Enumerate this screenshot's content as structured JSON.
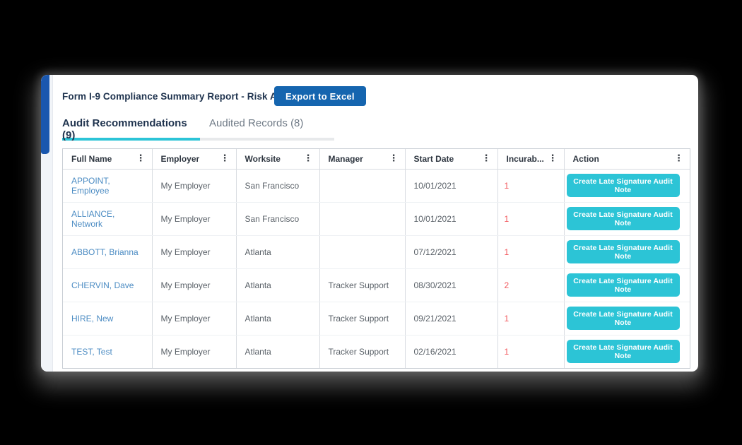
{
  "report": {
    "title": "Form I-9 Compliance Summary Report - Risk Alerts",
    "export_button_label": "Export to Excel"
  },
  "tabs": [
    {
      "label": "Audit Recommendations (9)",
      "active": true
    },
    {
      "label": "Audited Records (8)",
      "active": false
    }
  ],
  "icons": {
    "column_menu_glyph": "⋮"
  },
  "table": {
    "columns": [
      {
        "label": "Full Name"
      },
      {
        "label": "Employer"
      },
      {
        "label": "Worksite"
      },
      {
        "label": "Manager"
      },
      {
        "label": "Start Date"
      },
      {
        "label": "Incurab..."
      },
      {
        "label": "Action"
      }
    ],
    "rows": [
      {
        "full_name": "APPOINT, Employee",
        "employer": "My Employer",
        "worksite": "San Francisco",
        "manager": "",
        "start_date": "10/01/2021",
        "incurable": "1",
        "action_label": "Create Late Signature Audit Note"
      },
      {
        "full_name": "ALLIANCE, Network",
        "employer": "My Employer",
        "worksite": "San Francisco",
        "manager": "",
        "start_date": "10/01/2021",
        "incurable": "1",
        "action_label": "Create Late Signature Audit Note"
      },
      {
        "full_name": "ABBOTT, Brianna",
        "employer": "My Employer",
        "worksite": "Atlanta",
        "manager": "",
        "start_date": "07/12/2021",
        "incurable": "1",
        "action_label": "Create Late Signature Audit Note"
      },
      {
        "full_name": "CHERVIN, Dave",
        "employer": "My Employer",
        "worksite": "Atlanta",
        "manager": "Tracker Support",
        "start_date": "08/30/2021",
        "incurable": "2",
        "action_label": "Create Late Signature Audit Note"
      },
      {
        "full_name": "HIRE, New",
        "employer": "My Employer",
        "worksite": "Atlanta",
        "manager": "Tracker Support",
        "start_date": "09/21/2021",
        "incurable": "1",
        "action_label": "Create Late Signature Audit Note"
      },
      {
        "full_name": "TEST, Test",
        "employer": "My Employer",
        "worksite": "Atlanta",
        "manager": "Tracker Support",
        "start_date": "02/16/2021",
        "incurable": "1",
        "action_label": "Create Late Signature Audit Note"
      }
    ]
  },
  "colors": {
    "accent_teal": "#2cc4d6",
    "primary_blue": "#1565af",
    "navy_text": "#20344f",
    "link_blue": "#4c8cc3",
    "alert_red": "#f2595e",
    "scrollbar_thumb_blue": "#1a57ae"
  }
}
